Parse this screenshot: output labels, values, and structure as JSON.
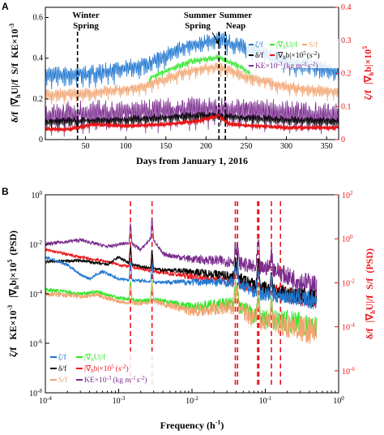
{
  "figure": {
    "panel_a": "A",
    "panel_b": "B"
  },
  "chart_data": [
    {
      "type": "line",
      "panel": "A",
      "xlabel": "Days from January 1, 2016",
      "xlim": [
        0,
        365
      ],
      "xticks": [
        50,
        100,
        150,
        200,
        250,
        300,
        350
      ],
      "left_axis": {
        "label_parts": [
          "δ/f",
          "|∇",
          "h",
          "U|/f",
          "S/f",
          "KE×10",
          "-3"
        ],
        "ylim": [
          0,
          0.65
        ],
        "ticks": [
          0,
          0.2,
          0.4,
          0.6
        ],
        "tick_labels": [
          "0",
          "0.2",
          "0.4",
          "0.6"
        ]
      },
      "right_axis": {
        "label_parts": [
          "ζ/f",
          "|∇",
          "h",
          "b|×10",
          "5"
        ],
        "color": "#e8161b",
        "ylim": [
          0,
          0.4
        ],
        "ticks": [
          0,
          0.1,
          0.2,
          0.3,
          0.4
        ],
        "tick_labels": [
          "0",
          "0.1",
          "0.2",
          "0.3",
          "0.4"
        ]
      },
      "event_lines": [
        {
          "x": 40,
          "label_lines": [
            "Winter",
            "Spring"
          ]
        },
        {
          "x": 216,
          "label_lines": [
            "Summer",
            "Spring"
          ]
        },
        {
          "x": 224,
          "label_lines": [
            "Summer",
            "Neap"
          ]
        }
      ],
      "series": [
        {
          "color": "#1f77d0",
          "axis": "left",
          "base": [
            [
              0,
              0.3
            ],
            [
              60,
              0.31
            ],
            [
              120,
              0.35
            ],
            [
              180,
              0.45
            ],
            [
              215,
              0.48
            ],
            [
              250,
              0.44
            ],
            [
              300,
              0.37
            ],
            [
              365,
              0.32
            ]
          ],
          "amp": [
            [
              0,
              0.13
            ],
            [
              180,
              0.11
            ],
            [
              365,
              0.12
            ]
          ]
        },
        {
          "color": "#f2a470",
          "axis": "left",
          "base": [
            [
              0,
              0.21
            ],
            [
              60,
              0.22
            ],
            [
              120,
              0.25
            ],
            [
              180,
              0.33
            ],
            [
              215,
              0.35
            ],
            [
              250,
              0.3
            ],
            [
              300,
              0.25
            ],
            [
              365,
              0.22
            ]
          ],
          "amp": [
            [
              0,
              0.08
            ],
            [
              365,
              0.08
            ]
          ]
        },
        {
          "color": "#2ee626",
          "axis": "left",
          "base": [
            [
              130,
              0.3
            ],
            [
              180,
              0.38
            ],
            [
              215,
              0.4
            ],
            [
              245,
              0.35
            ],
            [
              255,
              0.32
            ]
          ],
          "amp": [
            [
              130,
              0.04
            ],
            [
              255,
              0.04
            ]
          ]
        },
        {
          "color": "#7b2c8e",
          "axis": "left",
          "base": [
            [
              0,
              0.1
            ],
            [
              100,
              0.11
            ],
            [
              200,
              0.13
            ],
            [
              300,
              0.11
            ],
            [
              365,
              0.1
            ]
          ],
          "amp": [
            [
              0,
              0.18
            ],
            [
              365,
              0.18
            ]
          ]
        },
        {
          "color": "#000000",
          "axis": "left",
          "base": [
            [
              0,
              0.08
            ],
            [
              100,
              0.09
            ],
            [
              200,
              0.11
            ],
            [
              300,
              0.09
            ],
            [
              365,
              0.08
            ]
          ],
          "amp": [
            [
              0,
              0.06
            ],
            [
              365,
              0.06
            ]
          ]
        },
        {
          "color": "#e8161b",
          "axis": "right",
          "base": [
            [
              0,
              0.03
            ],
            [
              30,
              0.03
            ],
            [
              60,
              0.045
            ],
            [
              100,
              0.04
            ],
            [
              150,
              0.045
            ],
            [
              190,
              0.055
            ],
            [
              215,
              0.07
            ],
            [
              230,
              0.045
            ],
            [
              300,
              0.035
            ],
            [
              365,
              0.035
            ]
          ],
          "amp": [
            [
              0,
              0.012
            ],
            [
              365,
              0.012
            ]
          ]
        }
      ],
      "legend": [
        {
          "color": "#1f77d0",
          "parts": [
            "ζ/f"
          ]
        },
        {
          "color": "#2ee626",
          "parts": [
            "|∇",
            "h",
            "U|/f"
          ]
        },
        {
          "color": "#f2a470",
          "parts": [
            "S/f"
          ]
        },
        {
          "color": "#000000",
          "parts": [
            "δ/f"
          ]
        },
        {
          "color": "#e8161b",
          "parts": [
            "|∇",
            "h",
            "b|×10",
            "5",
            "(s",
            "-2",
            ")"
          ]
        },
        {
          "color": "#7b2c8e",
          "parts": [
            "KE×10",
            "-3",
            "(kg m",
            "-1",
            "s",
            "-2",
            ")"
          ]
        }
      ]
    },
    {
      "type": "line",
      "panel": "B",
      "xscale": "log",
      "xlabel": "Frequency (h",
      "xlabel_sup": "-1",
      "xlabel_end": ")",
      "xlim": [
        0.0001,
        1
      ],
      "xticks": [
        {
          "value": 0.0001,
          "base": "10",
          "exp": "-4"
        },
        {
          "value": 0.001,
          "base": "10",
          "exp": "-3"
        },
        {
          "value": 0.01,
          "base": "10",
          "exp": "-2"
        },
        {
          "value": 0.1,
          "base": "10",
          "exp": "-1"
        },
        {
          "value": 1,
          "base": "10",
          "exp": "0"
        }
      ],
      "left_axis": {
        "yscale": "log",
        "label_parts": [
          "ζ/f",
          "KE×10",
          "-3",
          "|∇",
          "h",
          "b|×10",
          "5",
          "(PSD)"
        ],
        "ylim": [
          1e-08,
          1
        ],
        "ticks": [
          {
            "value": 1e-08,
            "base": "10",
            "exp": "-8"
          },
          {
            "value": 1e-06,
            "base": "10",
            "exp": "-6"
          },
          {
            "value": 0.0001,
            "base": "10",
            "exp": "-4"
          },
          {
            "value": 0.01,
            "base": "10",
            "exp": "-2"
          },
          {
            "value": 1,
            "base": "10",
            "exp": "0"
          }
        ]
      },
      "right_axis": {
        "yscale": "log",
        "color": "#e8161b",
        "label_parts": [
          "δ/f",
          "|∇",
          "h",
          "U|/f",
          "S/f",
          "(PSD)"
        ],
        "ylim": [
          1e-07,
          100
        ],
        "ticks": [
          {
            "value": 1e-06,
            "base": "10",
            "exp": "-6"
          },
          {
            "value": 0.0001,
            "base": "10",
            "exp": "-4"
          },
          {
            "value": 0.01,
            "base": "10",
            "exp": "-2"
          },
          {
            "value": 1,
            "base": "10",
            "exp": "0"
          },
          {
            "value": 100,
            "base": "10",
            "exp": "2"
          }
        ]
      },
      "tidal_lines": [
        0.00145,
        0.00285,
        0.039,
        0.0418,
        0.0785,
        0.0815,
        0.121,
        0.161
      ],
      "series": [
        {
          "color": "#7b2c8e",
          "points": [
            [
              0.0001,
              0.01
            ],
            [
              0.0003,
              0.015
            ],
            [
              0.0007,
              0.008
            ],
            [
              0.00145,
              0.012
            ],
            [
              0.002,
              0.006
            ],
            [
              0.00285,
              0.02
            ],
            [
              0.004,
              0.004
            ],
            [
              0.01,
              0.0025
            ],
            [
              0.039,
              0.002
            ],
            [
              0.08,
              0.001
            ],
            [
              0.12,
              0.0012
            ],
            [
              0.2,
              0.0005
            ],
            [
              0.5,
              0.0002
            ]
          ],
          "noise": 0.35
        },
        {
          "color": "#e8161b",
          "points": [
            [
              0.0001,
              0.006
            ],
            [
              0.0003,
              0.003
            ],
            [
              0.0007,
              0.002
            ],
            [
              0.001,
              0.0015
            ],
            [
              0.0015,
              0.0012
            ],
            [
              0.003,
              0.0008
            ],
            [
              0.01,
              0.0005
            ],
            [
              0.039,
              0.0003
            ],
            [
              0.08,
              0.00015
            ],
            [
              0.2,
              0.0001
            ],
            [
              0.5,
              5e-05
            ]
          ],
          "noise": 0.3
        },
        {
          "color": "#000000",
          "points": [
            [
              0.0001,
              0.002
            ],
            [
              0.0003,
              0.0022
            ],
            [
              0.0007,
              0.0015
            ],
            [
              0.001,
              0.003
            ],
            [
              0.0015,
              0.0015
            ],
            [
              0.003,
              0.001
            ],
            [
              0.01,
              0.0008
            ],
            [
              0.039,
              0.0005
            ],
            [
              0.08,
              0.0002
            ],
            [
              0.2,
              0.0001
            ],
            [
              0.5,
              6e-05
            ]
          ],
          "noise": 0.3
        },
        {
          "color": "#1f77d0",
          "points": [
            [
              0.0001,
              0.003
            ],
            [
              0.0002,
              0.0015
            ],
            [
              0.0003,
              0.0006
            ],
            [
              0.0004,
              0.0004
            ],
            [
              0.0006,
              0.0008
            ],
            [
              0.001,
              0.0004
            ],
            [
              0.003,
              0.0003
            ],
            [
              0.01,
              0.0003
            ],
            [
              0.039,
              0.0003
            ],
            [
              0.08,
              0.0001
            ],
            [
              0.2,
              8e-05
            ],
            [
              0.5,
              5e-05
            ]
          ],
          "noise": 0.3
        },
        {
          "color": "#2ee626",
          "points": [
            [
              0.0001,
              0.00015
            ],
            [
              0.0003,
              0.0001
            ],
            [
              0.0005,
              0.00012
            ],
            [
              0.001,
              7e-05
            ],
            [
              0.002,
              5e-05
            ],
            [
              0.003,
              6e-05
            ],
            [
              0.01,
              3e-05
            ],
            [
              0.039,
              4e-05
            ],
            [
              0.08,
              1e-05
            ],
            [
              0.2,
              8e-06
            ],
            [
              0.5,
              4e-06
            ]
          ],
          "noise": 0.4
        },
        {
          "color": "#f2a470",
          "points": [
            [
              0.0001,
              0.0001
            ],
            [
              0.0003,
              8e-05
            ],
            [
              0.0005,
              9e-05
            ],
            [
              0.001,
              5e-05
            ],
            [
              0.002,
              4e-05
            ],
            [
              0.003,
              5e-05
            ],
            [
              0.01,
              2e-05
            ],
            [
              0.039,
              3e-05
            ],
            [
              0.08,
              8e-06
            ],
            [
              0.2,
              5e-06
            ],
            [
              0.5,
              3e-06
            ]
          ],
          "noise": 0.45
        }
      ],
      "legend": [
        {
          "color": "#1f77d0",
          "parts": [
            "ζ/f"
          ]
        },
        {
          "color": "#2ee626",
          "parts": [
            "|∇",
            "h",
            "U|/f"
          ]
        },
        {
          "color": "#000000",
          "parts": [
            "δ/f"
          ]
        },
        {
          "color": "#e8161b",
          "parts": [
            "|∇",
            "h",
            "b|×10",
            "5",
            "(s",
            "-2",
            ")"
          ]
        },
        {
          "color": "#f2a470",
          "parts": [
            "S/f"
          ]
        },
        {
          "color": "#7b2c8e",
          "parts": [
            "KE×10",
            "-3",
            "(kg m",
            "-1",
            "s",
            "-2",
            ")"
          ]
        }
      ]
    }
  ]
}
